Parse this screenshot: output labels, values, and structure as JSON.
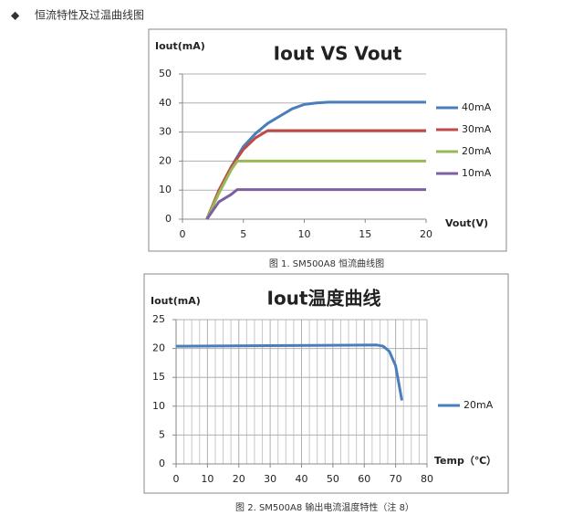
{
  "header": {
    "bullet": "◆",
    "title": "恒流特性及过温曲线图"
  },
  "captions": [
    "图 1. SM500A8  恒流曲线图",
    "图 2. SM500A8  输出电流温度特性（注 8）"
  ],
  "chart_data": [
    {
      "type": "line",
      "title": "Iout VS Vout",
      "y_label": "Iout(mA)",
      "x_label": "Vout(V)",
      "xlim": [
        0,
        20
      ],
      "xticks": [
        0,
        5,
        10,
        15,
        20
      ],
      "ylim": [
        0,
        50
      ],
      "yticks": [
        0,
        10,
        20,
        30,
        40,
        50
      ],
      "grid": "y",
      "series": [
        {
          "name": "40mA",
          "color": "#4a7ebb",
          "x": [
            2,
            3,
            4,
            5,
            6,
            7,
            8,
            9,
            10,
            11,
            12,
            13,
            20
          ],
          "values": [
            0,
            10,
            18,
            25,
            29.5,
            33,
            35.5,
            38,
            39.5,
            40,
            40.3,
            40.3,
            40.3
          ]
        },
        {
          "name": "30mA",
          "color": "#be4b48",
          "x": [
            2,
            3,
            4,
            5,
            6,
            7,
            8,
            20
          ],
          "values": [
            0,
            10,
            18,
            24,
            28,
            30.5,
            30.5,
            30.5
          ]
        },
        {
          "name": "20mA",
          "color": "#98b954",
          "x": [
            2,
            3,
            4,
            4.5,
            20
          ],
          "values": [
            0,
            9,
            17,
            20,
            20
          ]
        },
        {
          "name": "10mA",
          "color": "#7d60a0",
          "x": [
            2,
            3,
            4,
            4.5,
            20
          ],
          "values": [
            0,
            6,
            8.5,
            10.2,
            10.2
          ]
        }
      ]
    },
    {
      "type": "line",
      "title": "Iout温度曲线",
      "y_label": "Iout(mA)",
      "x_label": "Temp（℃）",
      "xlim": [
        0,
        80
      ],
      "xticks": [
        0,
        10,
        20,
        30,
        40,
        50,
        60,
        70,
        80
      ],
      "ylim": [
        0,
        25
      ],
      "yticks": [
        0,
        5,
        10,
        15,
        20,
        25
      ],
      "grid": "both",
      "series": [
        {
          "name": "20mA",
          "color": "#4a7ebb",
          "x": [
            0,
            64,
            66,
            68,
            70,
            72
          ],
          "values": [
            20.4,
            20.6,
            20.4,
            19.5,
            17,
            11
          ]
        }
      ]
    }
  ]
}
